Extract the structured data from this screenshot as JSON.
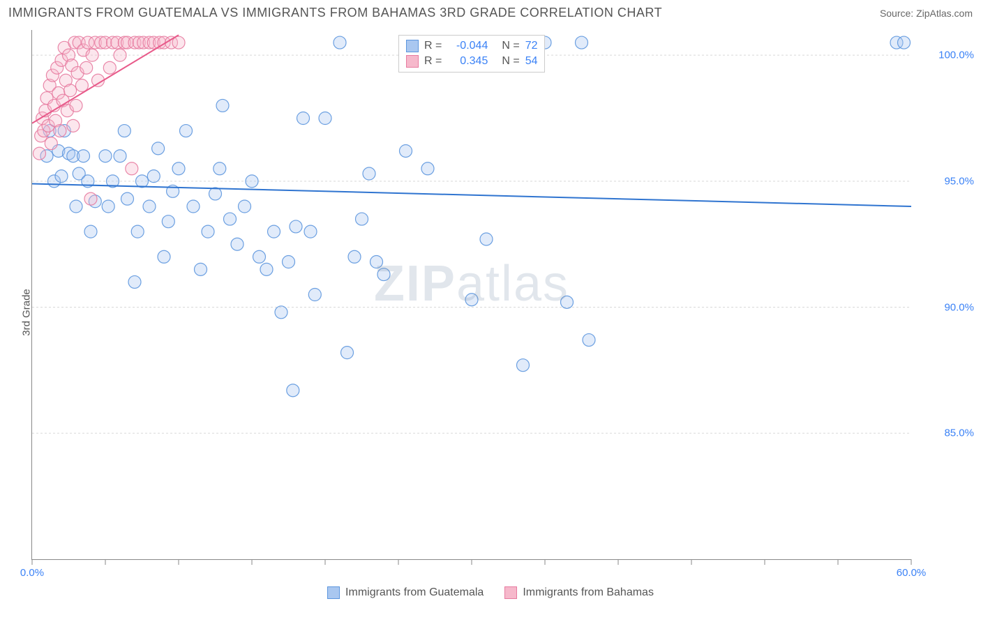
{
  "header": {
    "title": "IMMIGRANTS FROM GUATEMALA VS IMMIGRANTS FROM BAHAMAS 3RD GRADE CORRELATION CHART",
    "source_label": "Source: ZipAtlas.com"
  },
  "chart": {
    "type": "scatter",
    "ylabel": "3rd Grade",
    "xlim": [
      0,
      60
    ],
    "ylim": [
      80,
      101
    ],
    "x_ticks": [
      0,
      5,
      10,
      15,
      20,
      25,
      30,
      35,
      40,
      45,
      50,
      55,
      60
    ],
    "x_tick_labels": {
      "0": "0.0%",
      "60": "60.0%"
    },
    "y_ticks": [
      85,
      90,
      95,
      100
    ],
    "y_tick_labels": {
      "85": "85.0%",
      "90": "90.0%",
      "95": "95.0%",
      "100": "100.0%"
    },
    "grid_color": "#d8d8d8",
    "grid_dash": "3,3",
    "axis_color": "#888888",
    "background_color": "#ffffff",
    "marker_radius": 9,
    "marker_fill_opacity": 0.35,
    "marker_stroke_opacity": 0.9,
    "line_width": 2,
    "watermark_text": "ZIPatlas",
    "series": [
      {
        "name": "Immigrants from Guatemala",
        "color_fill": "#a9c7f0",
        "color_stroke": "#5c96de",
        "r_value": "-0.044",
        "n_value": "72",
        "trend_line": {
          "x1": 0,
          "y1": 94.9,
          "x2": 60,
          "y2": 94.0,
          "color": "#2f74d0"
        },
        "points": [
          [
            1.0,
            96.0
          ],
          [
            1.2,
            97.0
          ],
          [
            1.5,
            95.0
          ],
          [
            1.8,
            96.2
          ],
          [
            2.0,
            95.2
          ],
          [
            2.2,
            97.0
          ],
          [
            2.5,
            96.1
          ],
          [
            2.8,
            96.0
          ],
          [
            3.0,
            94.0
          ],
          [
            3.2,
            95.3
          ],
          [
            3.5,
            96.0
          ],
          [
            3.8,
            95.0
          ],
          [
            4.0,
            93.0
          ],
          [
            4.3,
            94.2
          ],
          [
            5.0,
            96.0
          ],
          [
            5.2,
            94.0
          ],
          [
            5.5,
            95.0
          ],
          [
            6.0,
            96.0
          ],
          [
            6.3,
            97.0
          ],
          [
            6.5,
            94.3
          ],
          [
            7.0,
            91.0
          ],
          [
            7.2,
            93.0
          ],
          [
            7.5,
            95.0
          ],
          [
            8.0,
            94.0
          ],
          [
            8.3,
            95.2
          ],
          [
            8.6,
            96.3
          ],
          [
            9.0,
            92.0
          ],
          [
            9.3,
            93.4
          ],
          [
            9.6,
            94.6
          ],
          [
            10.0,
            95.5
          ],
          [
            10.5,
            97.0
          ],
          [
            11.0,
            94.0
          ],
          [
            11.5,
            91.5
          ],
          [
            12.0,
            93.0
          ],
          [
            12.5,
            94.5
          ],
          [
            12.8,
            95.5
          ],
          [
            13.0,
            98.0
          ],
          [
            13.5,
            93.5
          ],
          [
            14.0,
            92.5
          ],
          [
            14.5,
            94.0
          ],
          [
            15.0,
            95.0
          ],
          [
            15.5,
            92.0
          ],
          [
            16.0,
            91.5
          ],
          [
            16.5,
            93.0
          ],
          [
            17.0,
            89.8
          ],
          [
            17.5,
            91.8
          ],
          [
            17.8,
            86.7
          ],
          [
            18.0,
            93.2
          ],
          [
            18.5,
            97.5
          ],
          [
            19.0,
            93.0
          ],
          [
            19.3,
            90.5
          ],
          [
            20.0,
            97.5
          ],
          [
            21.0,
            100.5
          ],
          [
            21.5,
            88.2
          ],
          [
            22.0,
            92.0
          ],
          [
            22.5,
            93.5
          ],
          [
            23.0,
            95.3
          ],
          [
            23.5,
            91.8
          ],
          [
            24.0,
            91.3
          ],
          [
            25.5,
            96.2
          ],
          [
            26.5,
            100.5
          ],
          [
            27.0,
            95.5
          ],
          [
            28.0,
            100.5
          ],
          [
            30.0,
            90.3
          ],
          [
            31.0,
            92.7
          ],
          [
            33.5,
            87.7
          ],
          [
            35.0,
            100.5
          ],
          [
            36.5,
            90.2
          ],
          [
            37.5,
            100.5
          ],
          [
            38.0,
            88.7
          ],
          [
            59.0,
            100.5
          ],
          [
            59.5,
            100.5
          ]
        ]
      },
      {
        "name": "Immigrants from Bahamas",
        "color_fill": "#f6b8cb",
        "color_stroke": "#e77ba0",
        "r_value": "0.345",
        "n_value": "54",
        "trend_line": {
          "x1": 0,
          "y1": 97.3,
          "x2": 10,
          "y2": 100.8,
          "color": "#e85a8a"
        },
        "points": [
          [
            0.5,
            96.1
          ],
          [
            0.6,
            96.8
          ],
          [
            0.7,
            97.5
          ],
          [
            0.8,
            97.0
          ],
          [
            0.9,
            97.8
          ],
          [
            1.0,
            98.3
          ],
          [
            1.1,
            97.2
          ],
          [
            1.2,
            98.8
          ],
          [
            1.3,
            96.5
          ],
          [
            1.4,
            99.2
          ],
          [
            1.5,
            98.0
          ],
          [
            1.6,
            97.4
          ],
          [
            1.7,
            99.5
          ],
          [
            1.8,
            98.5
          ],
          [
            1.9,
            97.0
          ],
          [
            2.0,
            99.8
          ],
          [
            2.1,
            98.2
          ],
          [
            2.2,
            100.3
          ],
          [
            2.3,
            99.0
          ],
          [
            2.4,
            97.8
          ],
          [
            2.5,
            100.0
          ],
          [
            2.6,
            98.6
          ],
          [
            2.7,
            99.6
          ],
          [
            2.8,
            97.2
          ],
          [
            2.9,
            100.5
          ],
          [
            3.0,
            98.0
          ],
          [
            3.1,
            99.3
          ],
          [
            3.2,
            100.5
          ],
          [
            3.4,
            98.8
          ],
          [
            3.5,
            100.2
          ],
          [
            3.7,
            99.5
          ],
          [
            3.8,
            100.5
          ],
          [
            4.0,
            94.3
          ],
          [
            4.1,
            100.0
          ],
          [
            4.3,
            100.5
          ],
          [
            4.5,
            99.0
          ],
          [
            4.7,
            100.5
          ],
          [
            5.0,
            100.5
          ],
          [
            5.3,
            99.5
          ],
          [
            5.5,
            100.5
          ],
          [
            5.8,
            100.5
          ],
          [
            6.0,
            100.0
          ],
          [
            6.3,
            100.5
          ],
          [
            6.5,
            100.5
          ],
          [
            6.8,
            95.5
          ],
          [
            7.0,
            100.5
          ],
          [
            7.3,
            100.5
          ],
          [
            7.6,
            100.5
          ],
          [
            8.0,
            100.5
          ],
          [
            8.3,
            100.5
          ],
          [
            8.7,
            100.5
          ],
          [
            9.0,
            100.5
          ],
          [
            9.5,
            100.5
          ],
          [
            10.0,
            100.5
          ]
        ]
      }
    ]
  },
  "legend_top": {
    "r_label": "R =",
    "n_label": "N ="
  },
  "bottom_legend": {
    "items": [
      "Immigrants from Guatemala",
      "Immigrants from Bahamas"
    ]
  }
}
